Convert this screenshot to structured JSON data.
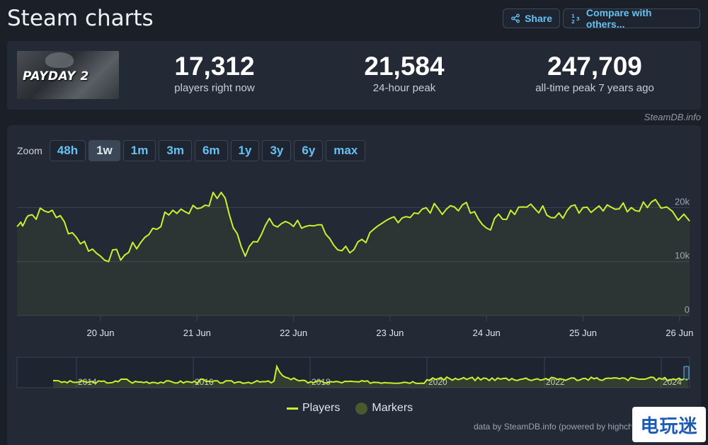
{
  "header": {
    "title": "Steam charts",
    "share_label": "Share",
    "compare_label": "Compare with others..."
  },
  "stats": {
    "game_logo_text": "PAYDAY 2",
    "current": {
      "value": "17,312",
      "label": "players right now"
    },
    "peak_24h": {
      "value": "21,584",
      "label": "24-hour peak"
    },
    "all_time": {
      "value": "247,709",
      "label": "all-time peak 7 years ago"
    }
  },
  "credit_top": "SteamDB.info",
  "zoom": {
    "label": "Zoom",
    "options": [
      "48h",
      "1w",
      "1m",
      "3m",
      "6m",
      "1y",
      "3y",
      "6y",
      "max"
    ],
    "active": "1w"
  },
  "legend": {
    "players": "Players",
    "markers": "Markers"
  },
  "credit_bottom": "data by SteamDB.info (powered by highcharts.com)",
  "watermark": "电玩迷",
  "colors": {
    "line": "#c6f22e",
    "accent": "#66c0f4",
    "bg": "#1b2028",
    "panel": "#232935"
  },
  "chart_data": {
    "type": "line",
    "series": [
      {
        "name": "Players",
        "x": [
          0,
          0.25,
          0.5,
          0.75,
          1.0,
          1.25,
          1.5,
          1.75,
          2.0,
          2.25,
          2.5,
          2.75,
          3.0,
          3.25,
          3.5,
          3.75,
          4.0,
          4.25,
          4.5,
          4.75,
          5.0,
          5.25,
          5.5,
          5.75,
          6.0,
          6.25,
          6.5,
          6.75,
          7.0
        ],
        "x_labels_hint": "days from 19 Jun 00:00",
        "values": [
          16500,
          18500,
          19500,
          14500,
          11000,
          11200,
          15000,
          19500,
          19800,
          22800,
          11000,
          18000,
          16500,
          16800,
          12000,
          13500,
          18000,
          19000,
          19800,
          20500,
          16200,
          19500,
          19800,
          19000,
          20000,
          20500,
          20000,
          21500,
          17500
        ]
      }
    ],
    "x_ticks": [
      "20 Jun",
      "21 Jun",
      "22 Jun",
      "23 Jun",
      "24 Jun",
      "25 Jun",
      "26 Jun"
    ],
    "y_ticks": [
      "0",
      "10k",
      "20k"
    ],
    "ylim": [
      0,
      27000
    ],
    "navigator": {
      "x_ticks": [
        "2014",
        "2016",
        "2018",
        "2020",
        "2022",
        "2024"
      ]
    }
  }
}
